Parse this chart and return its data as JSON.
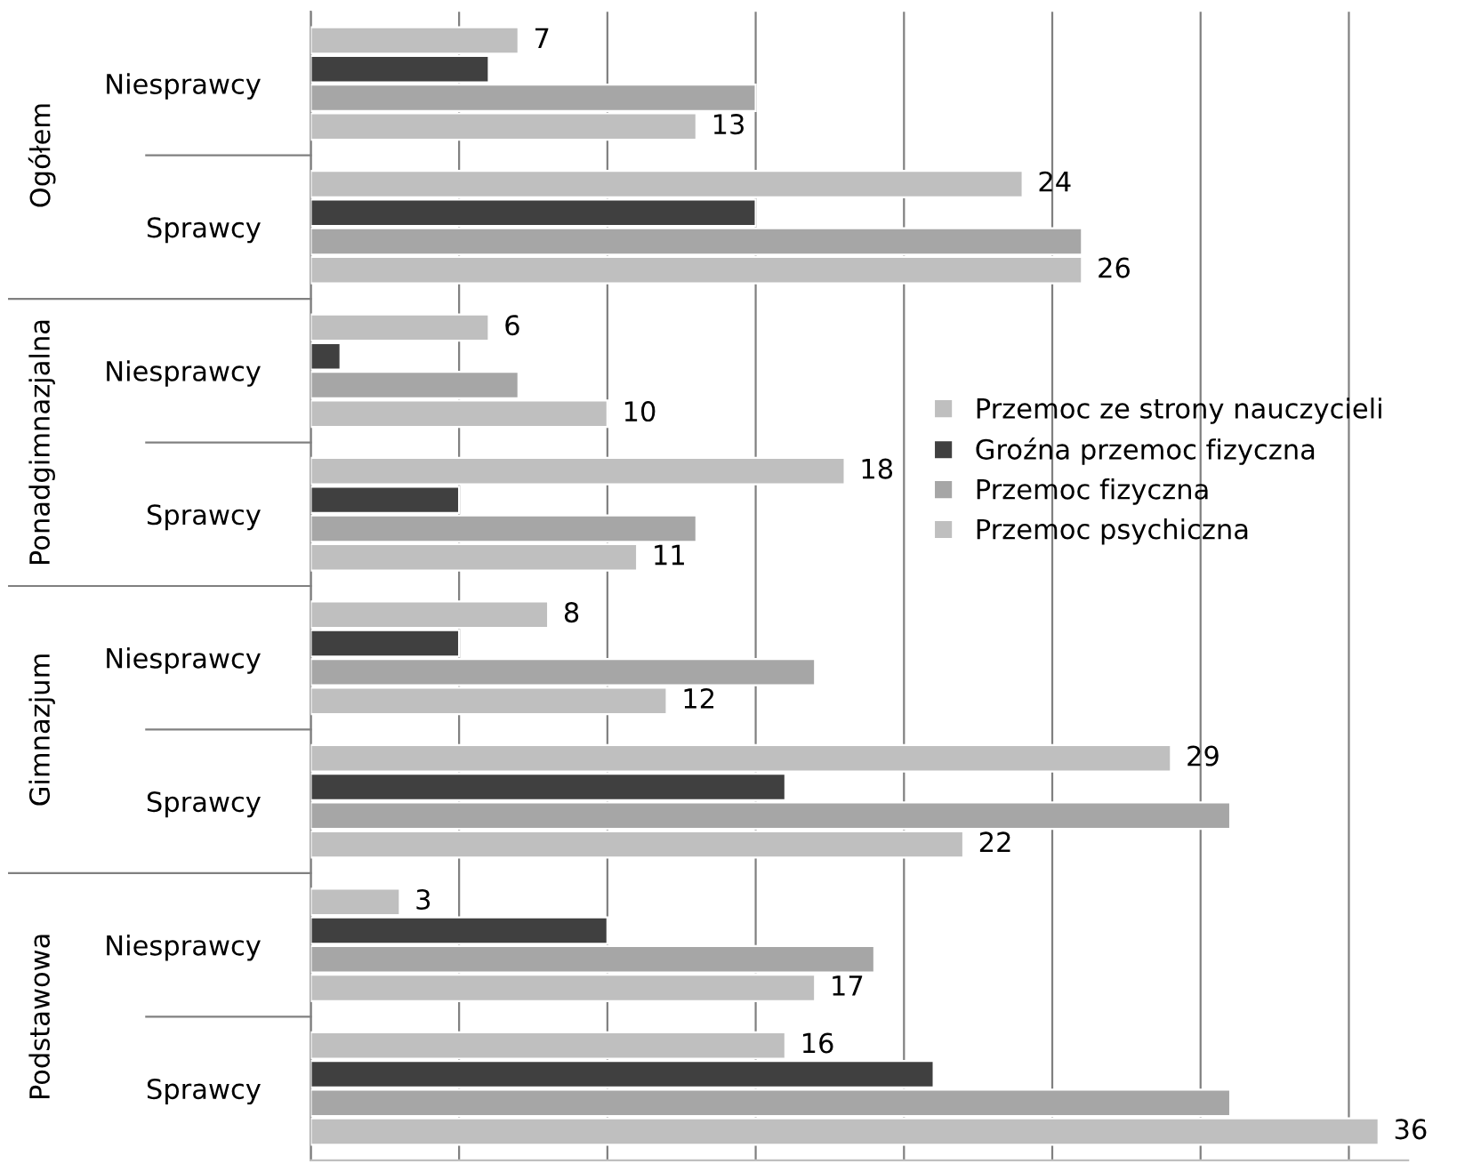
{
  "chart_data": {
    "type": "bar",
    "orientation": "horizontal",
    "categories": [
      "Niesprawcy",
      "Sprawcy",
      "Niesprawcy",
      "Sprawcy",
      "Niesprawcy",
      "Sprawcy",
      "Niesprawcy",
      "Sprawcy"
    ],
    "annotations": [
      "Ogółem",
      "Ponadgimnazjalna",
      "Gimnazjum",
      "Podstawowa"
    ],
    "series": [
      {
        "name": "Przemoc ze strony nauczycieli",
        "color": "#bfbfbf",
        "values": [
          7,
          24,
          6,
          18,
          8,
          29,
          3,
          16
        ],
        "value_labels": [
          "7",
          "24",
          "6",
          "18",
          "8",
          "29",
          "3",
          "16"
        ]
      },
      {
        "name": "Groźna przemoc fizyczna",
        "color": "#404040",
        "values": [
          6,
          15,
          1,
          5,
          5,
          16,
          10,
          21
        ]
      },
      {
        "name": "Przemoc fizyczna",
        "color": "#a6a6a6",
        "values": [
          15,
          26,
          7,
          13,
          17,
          31,
          19,
          31
        ]
      },
      {
        "name": "Przemoc psychiczna",
        "color": "#bfbfbf",
        "values": [
          13,
          26,
          10,
          11,
          12,
          22,
          17,
          36
        ],
        "value_labels": [
          "13",
          "26",
          "10",
          "11",
          "12",
          "22",
          "17",
          "36"
        ]
      }
    ],
    "xlim": [
      0,
      37
    ],
    "xticks": [
      {
        "value": 0,
        "label": null
      },
      {
        "value": 5,
        "label": null
      },
      {
        "value": 10,
        "label": null
      },
      {
        "value": 15,
        "label": null
      },
      {
        "value": 20,
        "label": null
      },
      {
        "value": 25,
        "label": null
      },
      {
        "value": 30,
        "label": null
      },
      {
        "value": 35,
        "label": null
      }
    ],
    "grid": "x",
    "legend": "right"
  }
}
